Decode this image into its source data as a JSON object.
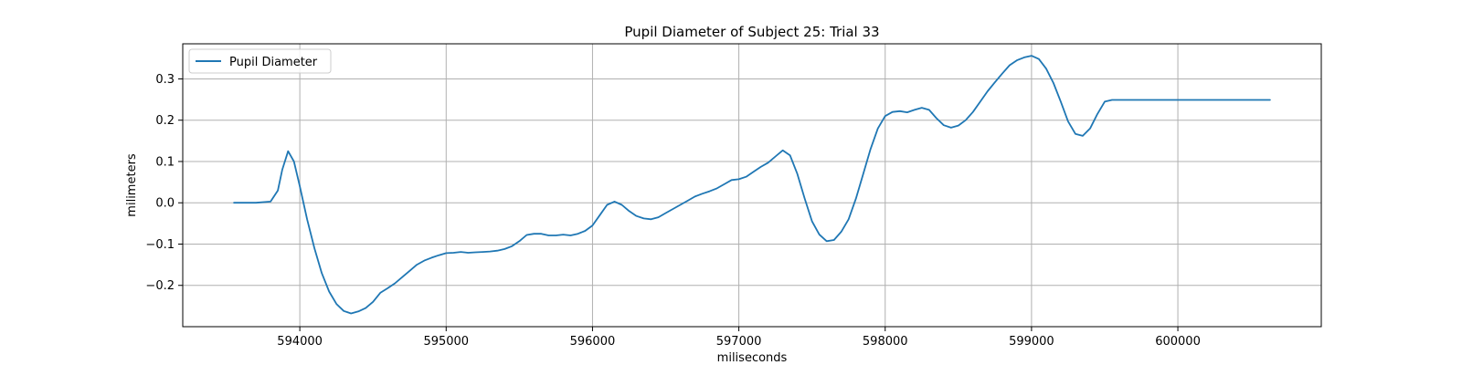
{
  "chart_data": {
    "type": "line",
    "title": "Pupil Diameter of Subject 25: Trial 33",
    "xlabel": "miliseconds",
    "ylabel": "milimeters",
    "xlim": [
      593200,
      600980
    ],
    "ylim": [
      -0.3,
      0.385
    ],
    "xticks": [
      594000,
      595000,
      596000,
      597000,
      598000,
      599000,
      600000
    ],
    "yticks": [
      -0.2,
      -0.1,
      0.0,
      0.1,
      0.2,
      0.3
    ],
    "grid": true,
    "legend_position": "upper-left",
    "color": "#1f77b4",
    "series": [
      {
        "name": "Pupil Diameter",
        "x": [
          593550,
          593700,
          593800,
          593850,
          593880,
          593920,
          593960,
          594000,
          594050,
          594100,
          594150,
          594200,
          594250,
          594300,
          594350,
          594400,
          594450,
          594500,
          594550,
          594600,
          594650,
          594700,
          594750,
          594800,
          594850,
          594900,
          594950,
          595000,
          595050,
          595100,
          595150,
          595200,
          595250,
          595300,
          595350,
          595400,
          595450,
          595500,
          595550,
          595600,
          595650,
          595700,
          595750,
          595800,
          595850,
          595900,
          595950,
          596000,
          596050,
          596100,
          596150,
          596200,
          596250,
          596300,
          596350,
          596400,
          596450,
          596500,
          596550,
          596600,
          596650,
          596700,
          596750,
          596800,
          596850,
          596900,
          596950,
          597000,
          597050,
          597100,
          597150,
          597200,
          597250,
          597300,
          597350,
          597400,
          597450,
          597500,
          597550,
          597600,
          597650,
          597700,
          597750,
          597800,
          597850,
          597900,
          597950,
          598000,
          598050,
          598100,
          598150,
          598200,
          598250,
          598300,
          598350,
          598400,
          598450,
          598500,
          598550,
          598600,
          598650,
          598700,
          598750,
          598800,
          598850,
          598900,
          598950,
          599000,
          599050,
          599100,
          599150,
          599200,
          599250,
          599300,
          599350,
          599400,
          599450,
          599500,
          599550,
          599600,
          599700,
          599800,
          600000,
          600200,
          600400,
          600630
        ],
        "y": [
          0.0,
          0.0,
          0.003,
          0.03,
          0.08,
          0.125,
          0.1,
          0.04,
          -0.04,
          -0.11,
          -0.17,
          -0.215,
          -0.245,
          -0.262,
          -0.268,
          -0.263,
          -0.255,
          -0.24,
          -0.218,
          -0.207,
          -0.195,
          -0.18,
          -0.165,
          -0.15,
          -0.14,
          -0.133,
          -0.127,
          -0.122,
          -0.121,
          -0.119,
          -0.121,
          -0.12,
          -0.119,
          -0.118,
          -0.116,
          -0.112,
          -0.105,
          -0.093,
          -0.078,
          -0.075,
          -0.075,
          -0.079,
          -0.079,
          -0.077,
          -0.079,
          -0.075,
          -0.068,
          -0.055,
          -0.03,
          -0.005,
          0.003,
          -0.005,
          -0.02,
          -0.032,
          -0.038,
          -0.04,
          -0.035,
          -0.025,
          -0.015,
          -0.005,
          0.005,
          0.015,
          0.022,
          0.028,
          0.035,
          0.045,
          0.055,
          0.057,
          0.063,
          0.075,
          0.087,
          0.097,
          0.112,
          0.127,
          0.115,
          0.07,
          0.01,
          -0.045,
          -0.077,
          -0.093,
          -0.09,
          -0.07,
          -0.04,
          0.01,
          0.07,
          0.13,
          0.18,
          0.21,
          0.22,
          0.222,
          0.219,
          0.225,
          0.23,
          0.225,
          0.205,
          0.188,
          0.182,
          0.187,
          0.2,
          0.22,
          0.245,
          0.27,
          0.292,
          0.313,
          0.333,
          0.345,
          0.352,
          0.356,
          0.348,
          0.325,
          0.29,
          0.245,
          0.197,
          0.167,
          0.162,
          0.18,
          0.215,
          0.245,
          0.249,
          0.249,
          0.249,
          0.249,
          0.249,
          0.249,
          0.249,
          0.249
        ]
      }
    ]
  }
}
